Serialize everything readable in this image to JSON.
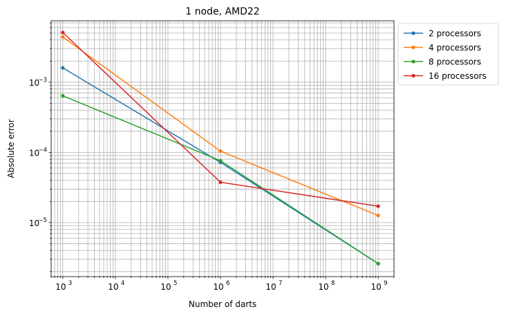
{
  "chart_data": {
    "type": "line",
    "title": "1 node, AMD22",
    "xlabel": "Number of darts",
    "ylabel": "Absolute error",
    "xscale": "log",
    "yscale": "log",
    "xlim": [
      600,
      2000000000
    ],
    "ylim": [
      1.7e-06,
      0.0075
    ],
    "grid": "major and minor",
    "legend_position": "outside-upper-right",
    "x_ticks": [
      {
        "base": "10",
        "exp": "3",
        "value": 1000
      },
      {
        "base": "10",
        "exp": "4",
        "value": 10000
      },
      {
        "base": "10",
        "exp": "5",
        "value": 100000
      },
      {
        "base": "10",
        "exp": "6",
        "value": 1000000
      },
      {
        "base": "10",
        "exp": "7",
        "value": 10000000
      },
      {
        "base": "10",
        "exp": "8",
        "value": 100000000
      },
      {
        "base": "10",
        "exp": "9",
        "value": 1000000000
      }
    ],
    "y_ticks": [
      {
        "base": "10",
        "exp": "−5",
        "value": 1e-05
      },
      {
        "base": "10",
        "exp": "−4",
        "value": 0.0001
      },
      {
        "base": "10",
        "exp": "−3",
        "value": 0.001
      }
    ],
    "x": [
      1000,
      1000000,
      1000000000
    ],
    "series": [
      {
        "name": "2 processors",
        "color": "#1f77b4",
        "values": [
          0.0016,
          7.2e-05,
          2.6e-06
        ]
      },
      {
        "name": "4 processors",
        "color": "#ff7f0e",
        "values": [
          0.0044,
          0.000104,
          1.26e-05
        ]
      },
      {
        "name": "8 processors",
        "color": "#2ca02c",
        "values": [
          0.00064,
          7.6e-05,
          2.6e-06
        ]
      },
      {
        "name": "16 processors",
        "color": "#d62728",
        "values": [
          0.0051,
          3.75e-05,
          1.71e-05
        ]
      }
    ]
  }
}
